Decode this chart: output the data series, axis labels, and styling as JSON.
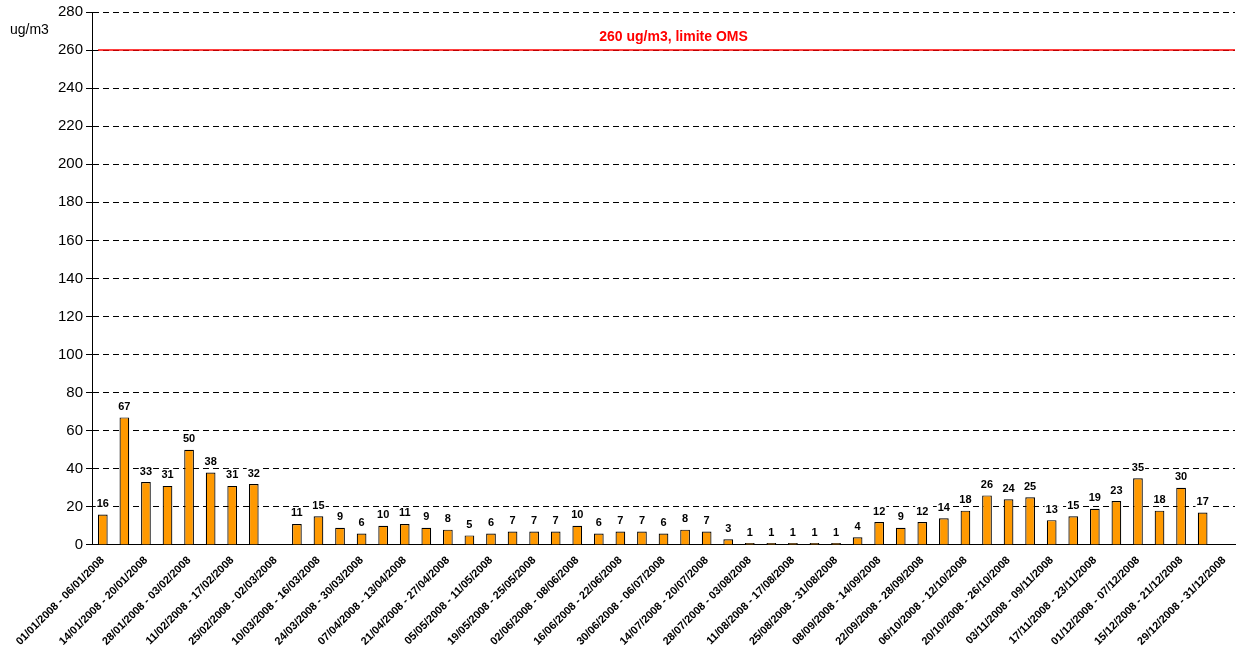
{
  "chart_data": {
    "type": "bar",
    "ylabel": "ug/m3",
    "categories": [
      "01/01/2008 - 06/01/2008",
      null,
      "14/01/2008 - 20/01/2008",
      null,
      "28/01/2008 - 03/02/2008",
      null,
      "11/02/2008 - 17/02/2008",
      null,
      "25/02/2008 - 02/03/2008",
      null,
      "10/03/2008 - 16/03/2008",
      null,
      "24/03/2008 - 30/03/2008",
      null,
      "07/04/2008 - 13/04/2008",
      null,
      "21/04/2008 - 27/04/2008",
      null,
      "05/05/2008 - 11/05/2008",
      null,
      "19/05/2008 - 25/05/2008",
      null,
      "02/06/2008 - 08/06/2008",
      null,
      "16/06/2008 - 22/06/2008",
      null,
      "30/06/2008 - 06/07/2008",
      null,
      "14/07/2008 - 20/07/2008",
      null,
      "28/07/2008 - 03/08/2008",
      null,
      "11/08/2008 - 17/08/2008",
      null,
      "25/08/2008 - 31/08/2008",
      null,
      "08/09/2008 - 14/09/2008",
      null,
      "22/09/2008 - 28/09/2008",
      null,
      "06/10/2008 - 12/10/2008",
      null,
      "20/10/2008 - 26/10/2008",
      null,
      "03/11/2008 - 09/11/2008",
      null,
      "17/11/2008 - 23/11/2008",
      null,
      "01/12/2008 - 07/12/2008",
      null,
      "15/12/2008 - 21/12/2008",
      null,
      "29/12/2008 - 31/12/2008"
    ],
    "values": [
      16,
      67,
      33,
      31,
      50,
      38,
      31,
      32,
      null,
      11,
      15,
      9,
      6,
      10,
      11,
      9,
      8,
      5,
      6,
      7,
      7,
      7,
      10,
      6,
      7,
      7,
      6,
      8,
      7,
      3,
      1,
      1,
      1,
      1,
      1,
      4,
      12,
      9,
      12,
      14,
      18,
      26,
      24,
      25,
      13,
      15,
      19,
      23,
      35,
      18,
      30,
      17,
      null
    ],
    "color": "#ff9900",
    "data_labels": true,
    "ylim": [
      0,
      280
    ],
    "yticks": [
      0,
      20,
      40,
      60,
      80,
      100,
      120,
      140,
      160,
      180,
      200,
      220,
      240,
      260,
      280
    ],
    "grid": "y",
    "legend": false,
    "ref_lines": [
      {
        "axis": "y",
        "value": 260,
        "label": "260 ug/m3, limite OMS",
        "color": "#ff0000"
      }
    ]
  }
}
